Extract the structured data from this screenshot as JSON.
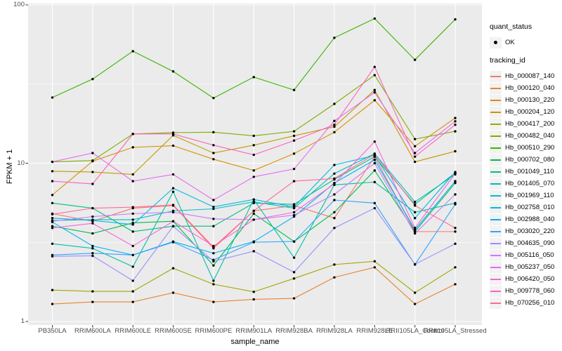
{
  "axes": {
    "x_title": "sample_name",
    "y_title": "FPKM + 1",
    "y_tick_labels": [
      "1",
      "10",
      "100"
    ]
  },
  "legend": {
    "quant_status_title": "quant_status",
    "quant_status_items": [
      {
        "label": "OK",
        "marker": "point",
        "color": "#000000"
      }
    ],
    "tracking_id_title": "tracking_id"
  },
  "panel": {
    "bg": "#EBEBEB",
    "grid_color": "#FFFFFF",
    "tick_color": "#333333",
    "point_color": "#000000"
  },
  "chart_data": {
    "type": "line",
    "title": "",
    "xlabel": "sample_name",
    "ylabel": "FPKM + 1",
    "y_scale": "log10",
    "y_ticks": [
      1,
      10,
      100
    ],
    "y_minor_ticks": [
      3.1623,
      31.623
    ],
    "ylim": [
      0.95,
      105
    ],
    "grid": true,
    "legend_position": "right",
    "quant_status": "OK",
    "categories": [
      "PB350LA",
      "RRIM600LA",
      "RRIM600LE",
      "RRIM600SE",
      "RRIM600PE",
      "RRIM901LA",
      "RRIM928BA",
      "RRIM928LA",
      "RRIM928LE",
      "RRII105LA_Control",
      "RRII105LA_Stressed"
    ],
    "series": [
      {
        "name": "Hb_000087_140",
        "color": "#F8766D",
        "values": [
          4.8,
          4.3,
          5.2,
          5.4,
          2.9,
          5.0,
          5.4,
          4.5,
          11.0,
          3.7,
          3.7
        ]
      },
      {
        "name": "Hb_000120_040",
        "color": "#EA8331",
        "values": [
          1.29,
          1.33,
          1.33,
          1.52,
          1.33,
          1.38,
          1.4,
          1.9,
          2.2,
          1.29,
          1.72
        ]
      },
      {
        "name": "Hb_000130_220",
        "color": "#D89000",
        "values": [
          6.3,
          10.3,
          12.6,
          12.9,
          10.6,
          9.0,
          11.5,
          15.7,
          25.0,
          12.8,
          19.3
        ]
      },
      {
        "name": "Hb_000204_120",
        "color": "#C09B00",
        "values": [
          8.9,
          8.8,
          8.5,
          15.0,
          11.6,
          13.0,
          14.9,
          17.0,
          29.0,
          10.2,
          11.9
        ]
      },
      {
        "name": "Hb_000417_200",
        "color": "#A3A500",
        "values": [
          1.58,
          1.55,
          1.55,
          2.17,
          1.72,
          1.54,
          1.87,
          2.29,
          2.4,
          1.52,
          2.2
        ]
      },
      {
        "name": "Hb_000482_040",
        "color": "#7CAE00",
        "values": [
          10.2,
          10.4,
          15.3,
          15.6,
          15.7,
          14.9,
          15.9,
          23.7,
          36.0,
          14.2,
          15.9
        ]
      },
      {
        "name": "Hb_000510_290",
        "color": "#39B600",
        "values": [
          26,
          34,
          51,
          38,
          25.8,
          35,
          29,
          62,
          82,
          45,
          81
        ]
      },
      {
        "name": "Hb_000702_080",
        "color": "#00BB4E",
        "values": [
          4.0,
          3.6,
          4.2,
          4.3,
          2.26,
          4.8,
          3.2,
          4.9,
          9.0,
          3.7,
          7.5
        ]
      },
      {
        "name": "Hb_001049_110",
        "color": "#00BF7D",
        "values": [
          5.6,
          5.2,
          3.7,
          4.0,
          4.0,
          5.6,
          5.5,
          7.9,
          11.0,
          5.5,
          8.7
        ]
      },
      {
        "name": "Hb_001405_070",
        "color": "#00C1A3",
        "values": [
          3.1,
          2.9,
          2.22,
          6.6,
          1.81,
          5.9,
          2.53,
          7.3,
          7.6,
          4.9,
          5.6
        ]
      },
      {
        "name": "Hb_001969_110",
        "color": "#00BFC4",
        "values": [
          4.35,
          4.4,
          4.4,
          5.0,
          5.15,
          5.7,
          5.2,
          8.6,
          11.5,
          5.7,
          8.5
        ]
      },
      {
        "name": "Hb_002758_010",
        "color": "#00BAE0",
        "values": [
          4.5,
          4.35,
          4.1,
          6.95,
          5.3,
          5.9,
          5.3,
          9.75,
          11.2,
          4.5,
          8.8
        ]
      },
      {
        "name": "Hb_002988_040",
        "color": "#00B0F6",
        "values": [
          4.25,
          3.0,
          2.63,
          3.2,
          2.7,
          3.2,
          4.6,
          7.5,
          10.5,
          3.8,
          7.7
        ]
      },
      {
        "name": "Hb_003020_220",
        "color": "#35A2FF",
        "values": [
          2.63,
          2.7,
          2.63,
          3.17,
          2.45,
          3.17,
          3.2,
          5.85,
          5.6,
          2.29,
          5.5
        ]
      },
      {
        "name": "Hb_004635_090",
        "color": "#9590FF",
        "values": [
          2.58,
          2.6,
          1.81,
          4.0,
          2.4,
          2.78,
          2.05,
          3.9,
          5.2,
          2.3,
          3.1
        ]
      },
      {
        "name": "Hb_005116_050",
        "color": "#C77CFF",
        "values": [
          4.3,
          4.6,
          4.8,
          4.9,
          4.45,
          4.4,
          4.7,
          6.35,
          10.0,
          3.6,
          6.35
        ]
      },
      {
        "name": "Hb_005237_050",
        "color": "#E76BF3",
        "values": [
          10.2,
          11.6,
          7.7,
          8.5,
          5.85,
          8.2,
          9.2,
          18.5,
          28.0,
          11.6,
          18.4
        ]
      },
      {
        "name": "Hb_006420_050",
        "color": "#FA62DB",
        "values": [
          3.9,
          4.17,
          3.0,
          4.3,
          3.0,
          4.4,
          4.9,
          7.4,
          13.7,
          3.9,
          8.6
        ]
      },
      {
        "name": "Hb_009778_060",
        "color": "#FF62BC",
        "values": [
          7.7,
          7.4,
          15.3,
          15.3,
          13.0,
          11.3,
          13.9,
          17.5,
          40.6,
          11.0,
          17.5
        ]
      },
      {
        "name": "Hb_070256_010",
        "color": "#FF6A98",
        "values": [
          4.76,
          5.2,
          5.28,
          5.45,
          2.95,
          5.0,
          7.7,
          8.0,
          11.4,
          5.4,
          3.9
        ]
      }
    ]
  }
}
